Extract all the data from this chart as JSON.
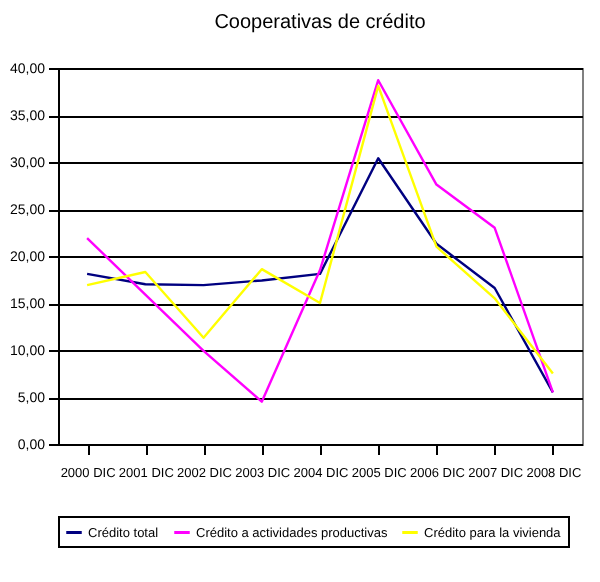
{
  "chart_data": {
    "type": "line",
    "title": "Cooperativas de crédito",
    "categories": [
      "2000 DIC",
      "2001 DIC",
      "2002 DIC",
      "2003 DIC",
      "2004 DIC",
      "2005 DIC",
      "2006 DIC",
      "2007 DIC",
      "2008 DIC"
    ],
    "series": [
      {
        "name": "Crédito total",
        "color": "#000080",
        "values": [
          18.1,
          17.0,
          16.9,
          17.4,
          18.1,
          30.4,
          21.3,
          16.6,
          5.5
        ]
      },
      {
        "name": "Crédito a actividades productivas",
        "color": "#ff00ff",
        "values": [
          21.9,
          15.9,
          9.9,
          4.5,
          18.5,
          38.7,
          27.6,
          23.0,
          5.5
        ]
      },
      {
        "name": "Crédito para la vivienda",
        "color": "#ffff00",
        "values": [
          16.9,
          18.3,
          11.3,
          18.6,
          15.0,
          38.1,
          21.0,
          15.5,
          7.5
        ]
      }
    ],
    "ylim": [
      0,
      40
    ],
    "yticks": [
      {
        "value": 0,
        "label": "0,00"
      },
      {
        "value": 5,
        "label": "5,00"
      },
      {
        "value": 10,
        "label": "10,00"
      },
      {
        "value": 15,
        "label": "15,00"
      },
      {
        "value": 20,
        "label": "20,00"
      },
      {
        "value": 25,
        "label": "25,00"
      },
      {
        "value": 30,
        "label": "30,00"
      },
      {
        "value": 35,
        "label": "35,00"
      },
      {
        "value": 40,
        "label": "40,00"
      }
    ],
    "grid": "y",
    "legend": "bottom"
  }
}
